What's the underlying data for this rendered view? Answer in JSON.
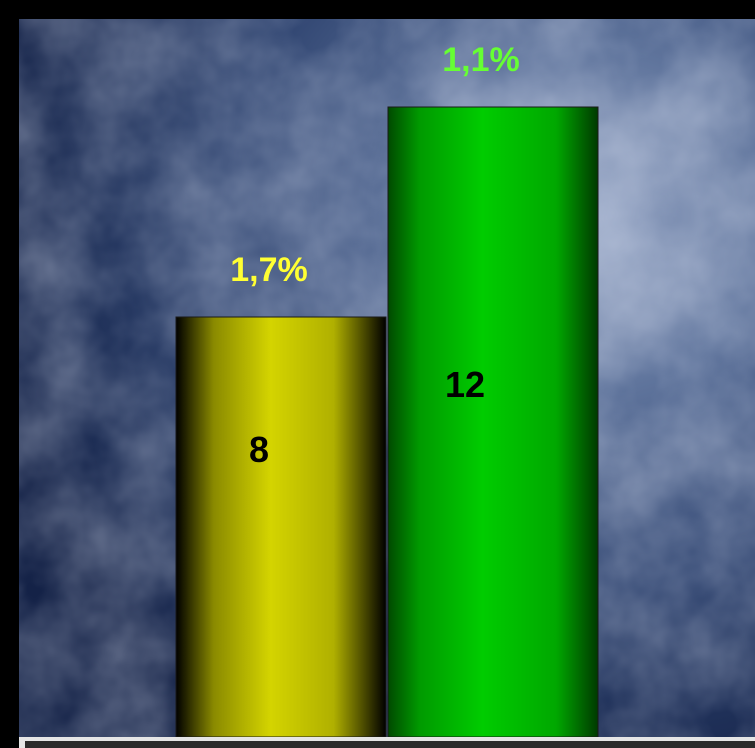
{
  "chart_data": {
    "type": "bar",
    "categories": [
      "",
      ""
    ],
    "values": [
      8,
      12
    ],
    "value_labels": [
      "8",
      "12"
    ],
    "top_labels": [
      "1,7%",
      "1,1%"
    ],
    "colors": [
      "#d4d400",
      "#00c800"
    ],
    "top_label_colors": [
      "#ffff33",
      "#66ff33"
    ],
    "value_label_color": "#000000",
    "background_color": "#2a3f6a",
    "xlabel": "",
    "ylabel": "",
    "grid": false,
    "legend": "none"
  }
}
